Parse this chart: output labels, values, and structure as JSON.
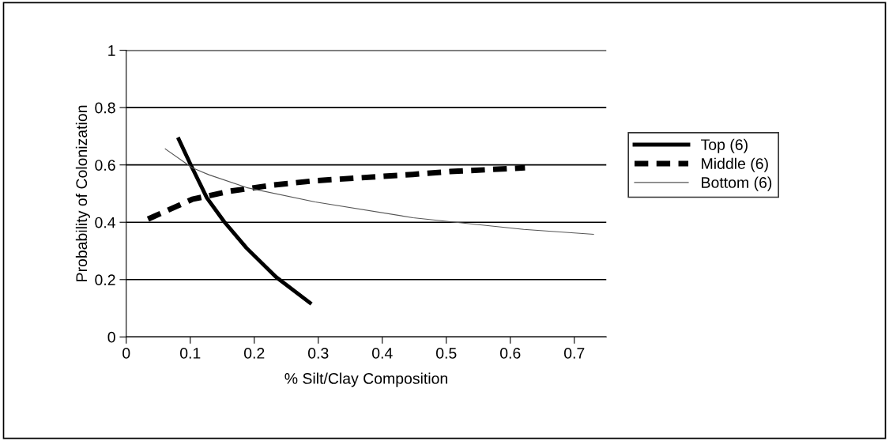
{
  "chart_data": {
    "type": "line",
    "xlabel": "% Silt/Clay Composition",
    "ylabel": "Probability of Colonization",
    "xlim": [
      0,
      0.75
    ],
    "xticks": [
      0,
      0.1,
      0.2,
      0.3,
      0.4,
      0.5,
      0.6,
      0.7
    ],
    "ylim": [
      0,
      1
    ],
    "yticks": [
      0,
      0.2,
      0.4,
      0.6,
      0.8,
      1
    ],
    "grid": "y",
    "legend": "right",
    "marker": "none",
    "series": [
      {
        "name": "Top (6)",
        "color": "#000000",
        "line_style": "solid",
        "x": [
          0.082,
          0.1,
          0.126,
          0.153,
          0.188,
          0.234,
          0.287
        ],
        "values": [
          0.69,
          0.604,
          0.485,
          0.402,
          0.31,
          0.209,
          0.119
        ]
      },
      {
        "name": "Middle (6)",
        "color": "#000000",
        "line_style": "dashed",
        "x": [
          0.034,
          0.103,
          0.161,
          0.226,
          0.295,
          0.448,
          0.506,
          0.623
        ],
        "values": [
          0.411,
          0.48,
          0.508,
          0.529,
          0.545,
          0.567,
          0.577,
          0.59
        ]
      },
      {
        "name": "Bottom (6)",
        "color": "#555555",
        "line_style": "solid",
        "x": [
          0.061,
          0.103,
          0.13,
          0.188,
          0.295,
          0.448,
          0.506,
          0.621,
          0.73
        ],
        "values": [
          0.656,
          0.59,
          0.565,
          0.521,
          0.471,
          0.416,
          0.402,
          0.375,
          0.358
        ]
      }
    ]
  }
}
